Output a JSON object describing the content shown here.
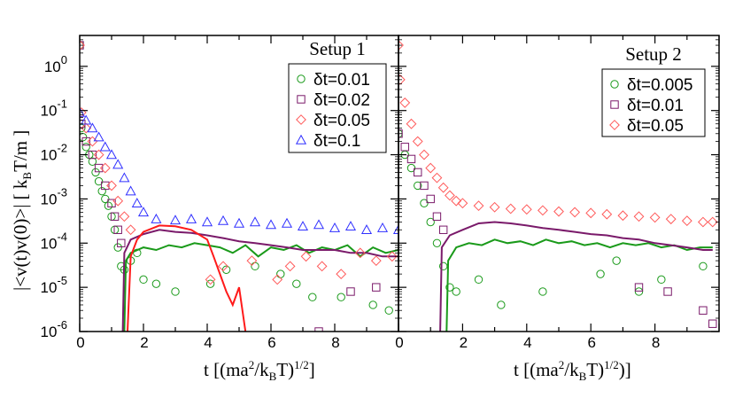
{
  "chart_data": [
    {
      "type": "scatter",
      "panel": "left",
      "legend_title": "Setup 1",
      "legend_position": "top-right",
      "xlabel": "t [(ma2/kBT)1/2]",
      "ylabel": "|<v(t)v(0)>| [ kBT/m ]",
      "xlim": [
        0,
        10
      ],
      "ylim": [
        1e-06,
        5
      ],
      "y_scale": "log",
      "x_ticks": [
        "0",
        "2",
        "4",
        "6",
        "8"
      ],
      "y_ticks": [
        "10-6",
        "10-5",
        "10-4",
        "10-3",
        "10-2",
        "10-1",
        "100"
      ],
      "series": [
        {
          "name": "δt=0.01",
          "color": "#1a9a1a",
          "marker": "circle",
          "points": [
            [
              0,
              3
            ],
            [
              0.05,
              0.04
            ],
            [
              0.1,
              0.025
            ],
            [
              0.2,
              0.015
            ],
            [
              0.3,
              0.01
            ],
            [
              0.4,
              0.007
            ],
            [
              0.5,
              0.004
            ],
            [
              0.6,
              0.0025
            ],
            [
              0.7,
              0.0015
            ],
            [
              0.8,
              0.001
            ],
            [
              0.9,
              0.0007
            ],
            [
              1.0,
              0.0004
            ],
            [
              1.1,
              0.0002
            ],
            [
              1.2,
              8e-05
            ],
            [
              1.3,
              3e-05
            ],
            [
              1.4,
              2.5e-05
            ],
            [
              1.6,
              4e-05
            ],
            [
              1.8,
              6e-05
            ],
            [
              2.0,
              1.5e-05
            ],
            [
              2.4,
              1.2e-05
            ],
            [
              3.0,
              8e-06
            ],
            [
              4.1,
              1.2e-05
            ],
            [
              4.6,
              2.5e-05
            ],
            [
              5.5,
              3e-05
            ],
            [
              6.3,
              2e-05
            ],
            [
              6.8,
              1.2e-05
            ],
            [
              7.3,
              6e-06
            ],
            [
              8.2,
              6e-06
            ],
            [
              9.2,
              4e-06
            ],
            [
              9.7,
              3e-06
            ]
          ],
          "line": [
            [
              1.4,
              1e-06
            ],
            [
              1.45,
              4e-05
            ],
            [
              1.6,
              6e-05
            ],
            [
              2.0,
              8e-05
            ],
            [
              2.4,
              7e-05
            ],
            [
              2.8,
              9e-05
            ],
            [
              3.2,
              8e-05
            ],
            [
              3.6,
              0.0001
            ],
            [
              4.0,
              9e-05
            ],
            [
              4.4,
              8e-05
            ],
            [
              4.8,
              6e-05
            ],
            [
              5.2,
              9e-05
            ],
            [
              5.6,
              5e-05
            ],
            [
              6.0,
              8e-05
            ],
            [
              6.4,
              7e-05
            ],
            [
              6.8,
              9e-05
            ],
            [
              7.2,
              6e-05
            ],
            [
              7.6,
              8e-05
            ],
            [
              8.0,
              7e-05
            ],
            [
              8.4,
              9e-05
            ],
            [
              8.8,
              5e-05
            ],
            [
              9.2,
              8e-05
            ],
            [
              9.6,
              6e-05
            ],
            [
              10.0,
              7e-05
            ]
          ]
        },
        {
          "name": "δt=0.02",
          "color": "#7a1a6a",
          "marker": "square",
          "points": [
            [
              0,
              3
            ],
            [
              0.05,
              0.05
            ],
            [
              0.2,
              0.02
            ],
            [
              0.4,
              0.01
            ],
            [
              0.6,
              0.005
            ],
            [
              0.8,
              0.002
            ],
            [
              1.0,
              0.0008
            ],
            [
              1.1,
              0.0004
            ],
            [
              1.2,
              0.0002
            ],
            [
              1.3,
              0.0001
            ],
            [
              7.5,
              1e-06
            ],
            [
              8.5,
              8e-06
            ],
            [
              9.3,
              1e-05
            ]
          ],
          "line": [
            [
              1.35,
              1e-06
            ],
            [
              1.4,
              6e-05
            ],
            [
              1.6,
              0.00012
            ],
            [
              2.0,
              0.00016
            ],
            [
              2.5,
              0.0002
            ],
            [
              3.0,
              0.00018
            ],
            [
              3.5,
              0.00017
            ],
            [
              4.0,
              0.00015
            ],
            [
              4.5,
              0.00013
            ],
            [
              5.0,
              0.00011
            ],
            [
              5.5,
              0.0001
            ],
            [
              6.0,
              9e-05
            ],
            [
              6.5,
              8e-05
            ],
            [
              7.0,
              7e-05
            ],
            [
              7.5,
              7e-05
            ],
            [
              8.0,
              7e-05
            ],
            [
              8.5,
              6e-05
            ],
            [
              9.0,
              6e-05
            ],
            [
              9.5,
              5e-05
            ],
            [
              10.0,
              5e-05
            ]
          ]
        },
        {
          "name": "δt=0.05",
          "color": "#ff5a5a",
          "marker": "diamond",
          "points": [
            [
              0,
              3
            ],
            [
              0.05,
              0.09
            ],
            [
              0.2,
              0.04
            ],
            [
              0.4,
              0.02
            ],
            [
              0.6,
              0.01
            ],
            [
              0.8,
              0.005
            ],
            [
              1.0,
              0.002
            ],
            [
              1.2,
              0.0009
            ],
            [
              1.4,
              0.0004
            ],
            [
              1.6,
              0.0002
            ],
            [
              4.1,
              1.5e-05
            ],
            [
              4.5,
              3e-05
            ],
            [
              5.4,
              4e-05
            ],
            [
              6.2,
              1.5e-05
            ],
            [
              6.6,
              3e-05
            ],
            [
              7.1,
              5e-05
            ],
            [
              7.6,
              3e-05
            ],
            [
              8.2,
              2e-05
            ],
            [
              8.8,
              6e-05
            ],
            [
              9.3,
              4e-05
            ],
            [
              9.8,
              5e-05
            ]
          ],
          "line": [
            [
              1.5,
              1e-06
            ],
            [
              1.6,
              5e-05
            ],
            [
              1.8,
              0.00012
            ],
            [
              2.0,
              0.00018
            ],
            [
              2.5,
              0.00025
            ],
            [
              3.0,
              0.00024
            ],
            [
              3.5,
              0.0002
            ],
            [
              4.0,
              0.00012
            ],
            [
              4.2,
              5e-05
            ],
            [
              4.4,
              2e-05
            ],
            [
              4.6,
              8e-06
            ],
            [
              4.8,
              4e-06
            ],
            [
              5.0,
              1e-05
            ],
            [
              5.2,
              1e-06
            ]
          ]
        },
        {
          "name": "δt=0.1",
          "color": "#3030ff",
          "marker": "triangle",
          "points": [
            [
              0,
              0.09
            ],
            [
              0.2,
              0.06
            ],
            [
              0.4,
              0.04
            ],
            [
              0.6,
              0.025
            ],
            [
              0.8,
              0.015
            ],
            [
              1.0,
              0.01
            ],
            [
              1.2,
              0.006
            ],
            [
              1.4,
              0.003
            ],
            [
              1.6,
              0.0015
            ],
            [
              1.8,
              0.0008
            ],
            [
              2.0,
              0.0005
            ],
            [
              2.4,
              0.00035
            ],
            [
              3.0,
              0.00033
            ],
            [
              3.5,
              0.00035
            ],
            [
              4.0,
              0.0003
            ],
            [
              4.5,
              0.00032
            ],
            [
              5.0,
              0.00028
            ],
            [
              5.5,
              0.0003
            ],
            [
              6.0,
              0.00026
            ],
            [
              6.5,
              0.00028
            ],
            [
              7.0,
              0.00024
            ],
            [
              7.5,
              0.00026
            ],
            [
              8.0,
              0.00022
            ],
            [
              8.5,
              0.00024
            ],
            [
              9.0,
              0.0002
            ],
            [
              9.5,
              0.00022
            ],
            [
              10.0,
              0.0002
            ]
          ]
        }
      ]
    },
    {
      "type": "scatter",
      "panel": "right",
      "legend_title": "Setup 2",
      "legend_position": "top-right",
      "xlabel": "t [(ma2/kBT)1/2)]",
      "xlim": [
        0,
        10
      ],
      "ylim": [
        1e-06,
        5
      ],
      "y_scale": "log",
      "x_ticks": [
        "0",
        "2",
        "4",
        "6",
        "8"
      ],
      "series": [
        {
          "name": "δt=0.005",
          "color": "#1a9a1a",
          "marker": "circle",
          "points": [
            [
              0,
              0.03
            ],
            [
              0.2,
              0.01
            ],
            [
              0.4,
              0.005
            ],
            [
              0.6,
              0.002
            ],
            [
              0.8,
              0.0008
            ],
            [
              1.0,
              0.0003
            ],
            [
              1.2,
              0.0001
            ],
            [
              1.4,
              3e-05
            ],
            [
              1.6,
              1e-05
            ],
            [
              1.8,
              8e-06
            ],
            [
              2.5,
              1.5e-05
            ],
            [
              3.2,
              4e-06
            ],
            [
              4.5,
              8e-06
            ],
            [
              6.3,
              2e-05
            ],
            [
              6.8,
              4e-05
            ],
            [
              7.5,
              8e-06
            ],
            [
              8.2,
              1.5e-05
            ],
            [
              9.5,
              3e-05
            ]
          ],
          "line": [
            [
              1.5,
              1e-06
            ],
            [
              1.55,
              4e-05
            ],
            [
              1.8,
              8e-05
            ],
            [
              2.2,
              0.0001
            ],
            [
              2.6,
              9e-05
            ],
            [
              3.0,
              0.00012
            ],
            [
              3.4,
              0.0001
            ],
            [
              3.8,
              0.00011
            ],
            [
              4.2,
              9e-05
            ],
            [
              4.6,
              0.00012
            ],
            [
              5.0,
              0.0001
            ],
            [
              5.4,
              0.00011
            ],
            [
              5.8,
              9e-05
            ],
            [
              6.2,
              0.0001
            ],
            [
              6.6,
              8e-05
            ],
            [
              7.0,
              0.0001
            ],
            [
              7.4,
              9e-05
            ],
            [
              7.8,
              0.0001
            ],
            [
              8.2,
              8e-05
            ],
            [
              8.6,
              9e-05
            ],
            [
              9.0,
              7e-05
            ],
            [
              9.4,
              8e-05
            ],
            [
              9.8,
              8e-05
            ]
          ]
        },
        {
          "name": "δt=0.01",
          "color": "#7a1a6a",
          "marker": "square",
          "points": [
            [
              0,
              0.03
            ],
            [
              0.2,
              0.015
            ],
            [
              0.4,
              0.008
            ],
            [
              0.6,
              0.004
            ],
            [
              0.8,
              0.002
            ],
            [
              1.0,
              0.001
            ],
            [
              1.2,
              0.0004
            ],
            [
              1.4,
              0.0002
            ],
            [
              7.5,
              1e-05
            ],
            [
              8.4,
              8e-06
            ],
            [
              9.5,
              3e-06
            ],
            [
              9.8,
              1.5e-06
            ]
          ],
          "line": [
            [
              1.3,
              1e-06
            ],
            [
              1.35,
              8e-05
            ],
            [
              1.6,
              0.00015
            ],
            [
              2.0,
              0.0002
            ],
            [
              2.5,
              0.00028
            ],
            [
              3.0,
              0.0003
            ],
            [
              3.5,
              0.00028
            ],
            [
              4.0,
              0.00025
            ],
            [
              4.5,
              0.00022
            ],
            [
              5.0,
              0.0002
            ],
            [
              5.5,
              0.00018
            ],
            [
              6.0,
              0.00016
            ],
            [
              6.5,
              0.00015
            ],
            [
              7.0,
              0.00013
            ],
            [
              7.5,
              0.00012
            ],
            [
              8.0,
              0.0001
            ],
            [
              8.5,
              9e-05
            ],
            [
              9.0,
              8e-05
            ],
            [
              9.5,
              7e-05
            ],
            [
              9.8,
              7e-05
            ]
          ]
        },
        {
          "name": "δt=0.05",
          "color": "#ff5a5a",
          "marker": "diamond",
          "points": [
            [
              0,
              3
            ],
            [
              0.05,
              0.5
            ],
            [
              0.2,
              0.15
            ],
            [
              0.4,
              0.05
            ],
            [
              0.6,
              0.02
            ],
            [
              0.8,
              0.01
            ],
            [
              1.0,
              0.005
            ],
            [
              1.2,
              0.003
            ],
            [
              1.4,
              0.0018
            ],
            [
              1.6,
              0.0012
            ],
            [
              1.8,
              0.0009
            ],
            [
              2.0,
              0.0008
            ],
            [
              2.5,
              0.0007
            ],
            [
              3.0,
              0.00065
            ],
            [
              3.5,
              0.0006
            ],
            [
              4.0,
              0.00058
            ],
            [
              4.5,
              0.00055
            ],
            [
              5.0,
              0.00052
            ],
            [
              5.5,
              0.0005
            ],
            [
              6.0,
              0.00048
            ],
            [
              6.5,
              0.00045
            ],
            [
              7.0,
              0.00042
            ],
            [
              7.5,
              0.0004
            ],
            [
              8.0,
              0.00038
            ],
            [
              8.5,
              0.00035
            ],
            [
              9.0,
              0.00032
            ],
            [
              9.5,
              0.0003
            ],
            [
              9.8,
              0.0003
            ]
          ]
        }
      ]
    }
  ]
}
